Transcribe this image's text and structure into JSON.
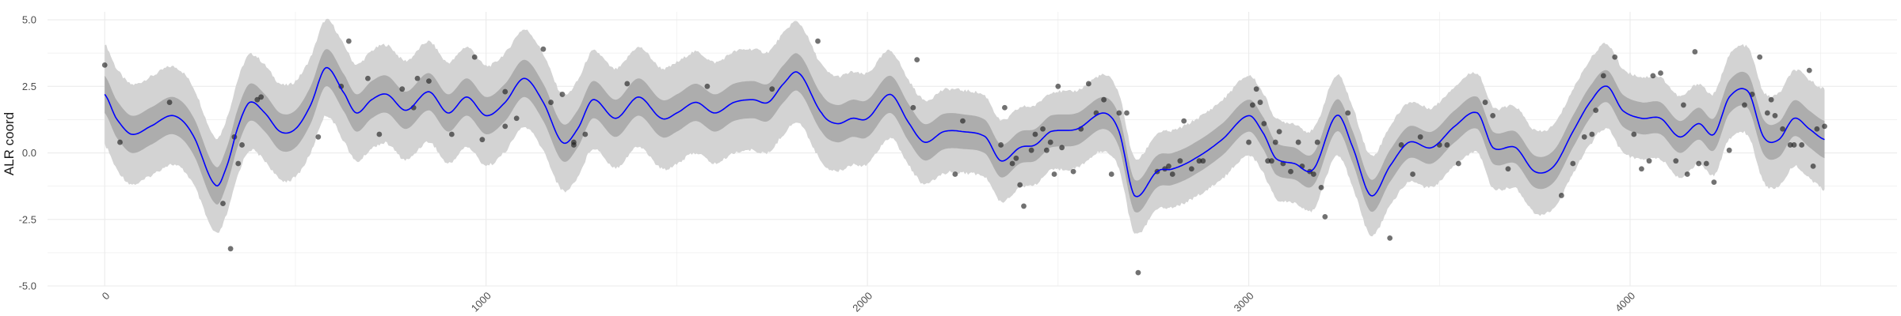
{
  "chart_data": {
    "type": "line",
    "title": "",
    "xlabel": "",
    "ylabel": "ALR coord",
    "xlim": [
      -150,
      4700
    ],
    "ylim": [
      -5.0,
      5.3
    ],
    "grid": true,
    "legend": "none",
    "x_ticks": [
      0,
      1000,
      2000,
      3000,
      4000
    ],
    "x_tick_labels": [
      "0",
      "1000",
      "2000",
      "3000",
      "4000"
    ],
    "y_ticks": [
      -5.0,
      -2.5,
      0.0,
      2.5,
      5.0
    ],
    "y_tick_labels": [
      "-5.0",
      "-2.5",
      "0.0",
      "2.5",
      "5.0"
    ],
    "colors": {
      "mean_line": "#0000ff",
      "inner_band": "#adadad",
      "outer_band": "#d3d3d3",
      "points": "#1a1a1a",
      "grid": "#ebebeb"
    },
    "series": [
      {
        "role": "mean",
        "x": [
          0,
          30,
          70,
          120,
          180,
          230,
          290,
          320,
          350,
          380,
          420,
          460,
          500,
          540,
          580,
          630,
          660,
          700,
          740,
          790,
          850,
          900,
          950,
          1000,
          1050,
          1100,
          1150,
          1200,
          1240,
          1280,
          1340,
          1400,
          1460,
          1500,
          1550,
          1600,
          1650,
          1700,
          1740,
          1780,
          1820,
          1880,
          1920,
          1960,
          2000,
          2060,
          2110,
          2150,
          2200,
          2250,
          2310,
          2350,
          2400,
          2440,
          2480,
          2550,
          2620,
          2660,
          2700,
          2760,
          2800,
          2860,
          2930,
          3000,
          3040,
          3070,
          3120,
          3170,
          3230,
          3270,
          3320,
          3370,
          3420,
          3480,
          3540,
          3600,
          3640,
          3700,
          3750,
          3800,
          3850,
          3900,
          3940,
          3980,
          4030,
          4080,
          4130,
          4180,
          4220,
          4260,
          4310,
          4350,
          4390,
          4430,
          4470,
          4510
        ],
        "y": [
          2.2,
          1.3,
          0.7,
          1.0,
          1.4,
          0.7,
          -1.2,
          -0.5,
          1.0,
          1.9,
          1.5,
          0.8,
          0.9,
          1.8,
          3.2,
          2.2,
          1.5,
          2.0,
          2.2,
          1.6,
          2.3,
          1.5,
          2.1,
          1.4,
          1.9,
          2.8,
          1.9,
          0.4,
          0.9,
          2.0,
          1.3,
          2.1,
          1.3,
          1.5,
          1.9,
          1.5,
          1.9,
          2.0,
          1.9,
          2.6,
          3.0,
          1.5,
          1.1,
          1.3,
          1.3,
          2.2,
          1.1,
          0.4,
          0.8,
          0.8,
          0.6,
          -0.3,
          0.2,
          0.3,
          0.8,
          0.9,
          1.5,
          0.8,
          -1.6,
          -0.7,
          -0.6,
          -0.2,
          0.5,
          1.4,
          0.7,
          -0.2,
          -0.4,
          -0.6,
          1.4,
          0.3,
          -1.6,
          -0.5,
          0.4,
          0.2,
          1.0,
          1.5,
          0.2,
          0.2,
          -0.7,
          -0.5,
          0.8,
          2.0,
          2.5,
          1.6,
          1.3,
          1.3,
          0.6,
          1.1,
          0.7,
          2.1,
          2.3,
          0.6,
          0.5,
          1.3,
          0.9,
          0.5
        ]
      },
      {
        "role": "inner-band-halfwidth",
        "x": [
          0,
          300,
          600,
          900,
          1200,
          1500,
          1800,
          2100,
          2400,
          2700,
          3000,
          3300,
          3600,
          3900,
          4200,
          4510
        ],
        "y": [
          0.7,
          0.7,
          0.7,
          0.7,
          0.7,
          0.7,
          0.7,
          0.7,
          0.6,
          0.6,
          0.6,
          0.6,
          0.6,
          0.6,
          0.6,
          0.7
        ]
      },
      {
        "role": "outer-band-halfwidth",
        "x": [
          0,
          300,
          600,
          900,
          1200,
          1500,
          1800,
          2100,
          2400,
          2700,
          3000,
          3300,
          3600,
          3900,
          4200,
          4510
        ],
        "y": [
          1.9,
          1.8,
          1.8,
          1.9,
          1.8,
          1.9,
          1.9,
          1.6,
          1.5,
          1.4,
          1.5,
          1.5,
          1.5,
          1.6,
          1.5,
          1.9
        ]
      },
      {
        "role": "observations",
        "points": [
          [
            0,
            3.3
          ],
          [
            40,
            0.4
          ],
          [
            170,
            1.9
          ],
          [
            310,
            -1.9
          ],
          [
            330,
            -3.6
          ],
          [
            340,
            0.6
          ],
          [
            350,
            -0.4
          ],
          [
            360,
            0.3
          ],
          [
            400,
            2.0
          ],
          [
            410,
            2.1
          ],
          [
            560,
            0.6
          ],
          [
            620,
            2.5
          ],
          [
            640,
            4.2
          ],
          [
            690,
            2.8
          ],
          [
            720,
            0.7
          ],
          [
            780,
            2.4
          ],
          [
            810,
            1.7
          ],
          [
            820,
            2.8
          ],
          [
            850,
            2.7
          ],
          [
            910,
            0.7
          ],
          [
            970,
            3.6
          ],
          [
            990,
            0.5
          ],
          [
            1050,
            2.3
          ],
          [
            1080,
            1.3
          ],
          [
            1050,
            1.0
          ],
          [
            1150,
            3.9
          ],
          [
            1170,
            1.9
          ],
          [
            1200,
            2.2
          ],
          [
            1230,
            0.3
          ],
          [
            1230,
            0.4
          ],
          [
            1260,
            0.7
          ],
          [
            1370,
            2.6
          ],
          [
            1580,
            2.5
          ],
          [
            1750,
            2.4
          ],
          [
            1870,
            4.2
          ],
          [
            2130,
            3.5
          ],
          [
            2120,
            1.7
          ],
          [
            2230,
            -0.8
          ],
          [
            2250,
            1.2
          ],
          [
            2350,
            0.3
          ],
          [
            2360,
            1.7
          ],
          [
            2380,
            -0.4
          ],
          [
            2390,
            -0.2
          ],
          [
            2400,
            -1.2
          ],
          [
            2410,
            -2.0
          ],
          [
            2430,
            0.1
          ],
          [
            2440,
            0.7
          ],
          [
            2460,
            0.9
          ],
          [
            2470,
            0.1
          ],
          [
            2480,
            0.4
          ],
          [
            2490,
            -0.8
          ],
          [
            2500,
            2.5
          ],
          [
            2510,
            0.2
          ],
          [
            2540,
            -0.7
          ],
          [
            2560,
            0.9
          ],
          [
            2580,
            2.6
          ],
          [
            2600,
            1.5
          ],
          [
            2620,
            2.0
          ],
          [
            2640,
            -0.8
          ],
          [
            2660,
            1.5
          ],
          [
            2680,
            1.5
          ],
          [
            2710,
            -4.5
          ],
          [
            2760,
            -0.7
          ],
          [
            2780,
            -0.6
          ],
          [
            2790,
            -0.5
          ],
          [
            2800,
            -0.8
          ],
          [
            2820,
            -0.3
          ],
          [
            2830,
            1.2
          ],
          [
            2850,
            -0.6
          ],
          [
            2870,
            -0.3
          ],
          [
            2880,
            -0.3
          ],
          [
            3000,
            0.4
          ],
          [
            3010,
            1.8
          ],
          [
            3020,
            2.4
          ],
          [
            3030,
            1.9
          ],
          [
            3040,
            1.1
          ],
          [
            3050,
            -0.3
          ],
          [
            3060,
            -0.3
          ],
          [
            3070,
            0.4
          ],
          [
            3080,
            0.8
          ],
          [
            3090,
            -0.4
          ],
          [
            3110,
            -0.7
          ],
          [
            3130,
            0.4
          ],
          [
            3140,
            -0.5
          ],
          [
            3160,
            -0.7
          ],
          [
            3170,
            -0.8
          ],
          [
            3180,
            0.4
          ],
          [
            3190,
            -1.3
          ],
          [
            3200,
            -2.4
          ],
          [
            3260,
            1.5
          ],
          [
            3370,
            -3.2
          ],
          [
            3400,
            0.3
          ],
          [
            3430,
            -0.8
          ],
          [
            3450,
            0.6
          ],
          [
            3500,
            0.3
          ],
          [
            3520,
            0.3
          ],
          [
            3550,
            -0.4
          ],
          [
            3620,
            1.9
          ],
          [
            3640,
            1.4
          ],
          [
            3680,
            -0.6
          ],
          [
            3820,
            -1.6
          ],
          [
            3850,
            -0.4
          ],
          [
            3880,
            0.6
          ],
          [
            3900,
            0.7
          ],
          [
            3910,
            1.6
          ],
          [
            3930,
            2.9
          ],
          [
            3960,
            3.6
          ],
          [
            4010,
            0.7
          ],
          [
            4030,
            -0.6
          ],
          [
            4050,
            -0.3
          ],
          [
            4060,
            2.9
          ],
          [
            4080,
            3.0
          ],
          [
            4120,
            -0.3
          ],
          [
            4140,
            1.8
          ],
          [
            4150,
            -0.8
          ],
          [
            4170,
            3.8
          ],
          [
            4180,
            -0.4
          ],
          [
            4200,
            -0.4
          ],
          [
            4220,
            -1.1
          ],
          [
            4260,
            0.1
          ],
          [
            4300,
            1.8
          ],
          [
            4320,
            2.2
          ],
          [
            4340,
            3.6
          ],
          [
            4360,
            1.5
          ],
          [
            4370,
            2.0
          ],
          [
            4380,
            1.4
          ],
          [
            4400,
            0.9
          ],
          [
            4420,
            0.3
          ],
          [
            4430,
            0.3
          ],
          [
            4450,
            0.3
          ],
          [
            4470,
            3.1
          ],
          [
            4480,
            -0.5
          ],
          [
            4490,
            0.9
          ],
          [
            4510,
            1.0
          ]
        ]
      }
    ]
  }
}
